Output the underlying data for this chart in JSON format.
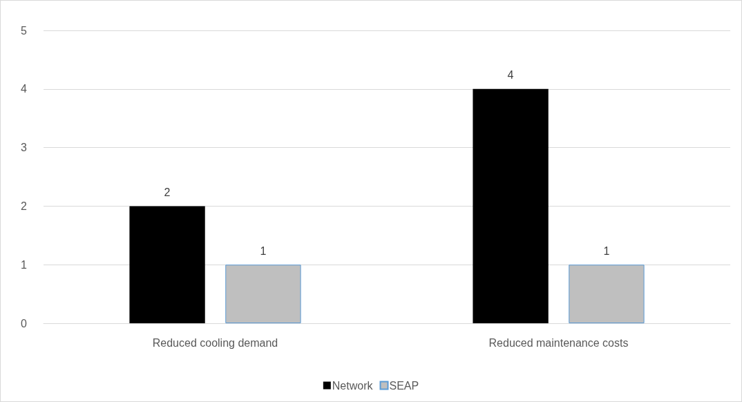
{
  "chart_data": {
    "type": "bar",
    "categories": [
      "Reduced cooling demand",
      "Reduced maintenance costs"
    ],
    "series": [
      {
        "name": "Network",
        "color": "#000000",
        "values": [
          2,
          4
        ]
      },
      {
        "name": "SEAP",
        "color": "#bfbfbf",
        "values": [
          1,
          1
        ]
      }
    ],
    "ylim": [
      0,
      5
    ],
    "yticks": [
      0,
      1,
      2,
      3,
      4,
      5
    ],
    "grid": "y",
    "legend": "bottom",
    "data_labels": true
  }
}
